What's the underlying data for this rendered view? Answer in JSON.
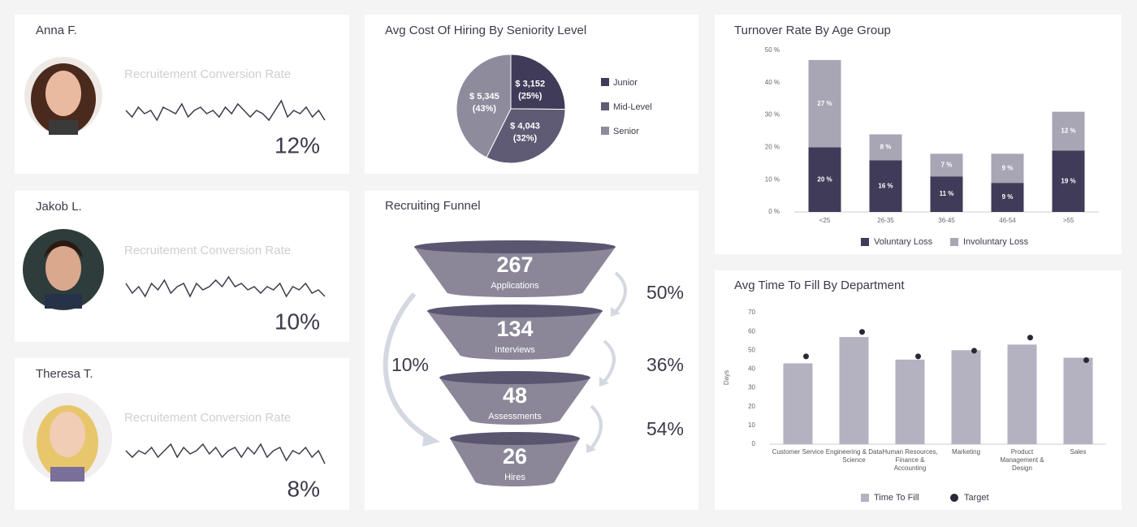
{
  "people": [
    {
      "name": "Anna F.",
      "metric": "Recruitement Conversion Rate",
      "rate": "12%",
      "trend": [
        5,
        3,
        6,
        4,
        5,
        2,
        6,
        5,
        4,
        7,
        3,
        5,
        6,
        4,
        5,
        3,
        6,
        4,
        7,
        5,
        3,
        5,
        4,
        2,
        5,
        8,
        3,
        5,
        4,
        6,
        3,
        5,
        2
      ]
    },
    {
      "name": "Jakob L.",
      "metric": "Recruitement Conversion Rate",
      "rate": "10%",
      "trend": [
        6,
        3,
        5,
        2,
        6,
        4,
        7,
        3,
        5,
        6,
        2,
        6,
        4,
        5,
        7,
        5,
        8,
        5,
        6,
        4,
        5,
        3,
        5,
        4,
        6,
        2,
        5,
        4,
        6,
        3,
        4,
        2
      ]
    },
    {
      "name": "Theresa T.",
      "metric": "Recruitement Conversion Rate",
      "rate": "8%",
      "trend": [
        5,
        3,
        5,
        4,
        6,
        3,
        5,
        7,
        3,
        6,
        4,
        5,
        7,
        4,
        6,
        3,
        5,
        6,
        3,
        6,
        4,
        7,
        3,
        5,
        6,
        2,
        5,
        4,
        6,
        3,
        5,
        1
      ]
    }
  ],
  "chart_data": [
    {
      "type": "pie",
      "title": "Avg Cost Of Hiring By Seniority Level",
      "categories": [
        "Junior",
        "Mid-Level",
        "Senior"
      ],
      "values": [
        3152,
        4043,
        5345
      ],
      "value_labels": [
        "$ 3,152",
        "$ 4,043",
        "$ 5,345"
      ],
      "percent_labels": [
        "(25%)",
        "(32%)",
        "(43%)"
      ],
      "colors": [
        "#3f3b58",
        "#5f5b74",
        "#8e8b9c"
      ],
      "legend": "right"
    },
    {
      "type": "stacked_bar",
      "title": "Turnover Rate By Age Group",
      "categories": [
        "<25",
        "26-35",
        "36-45",
        "46-54",
        ">55"
      ],
      "series": [
        {
          "name": "Voluntary Loss",
          "color": "#3f3b58",
          "values": [
            20,
            16,
            11,
            9,
            19
          ],
          "value_labels": [
            "20 %",
            "16 %",
            "11 %",
            "9 %",
            "19 %"
          ]
        },
        {
          "name": "Involuntary Loss",
          "color": "#a8a5b4",
          "values": [
            27,
            8,
            7,
            9,
            12
          ],
          "value_labels": [
            "27 %",
            "8 %",
            "7 %",
            "9 %",
            "12 %"
          ]
        }
      ],
      "ylim": [
        0,
        50
      ],
      "yticks": [
        {
          "value": 0,
          "label": "0 %"
        },
        {
          "value": 10,
          "label": "10 %"
        },
        {
          "value": 20,
          "label": "20 %"
        },
        {
          "value": 30,
          "label": "30 %"
        },
        {
          "value": 40,
          "label": "40 %"
        },
        {
          "value": 50,
          "label": "50 %"
        }
      ],
      "legend": "bottom"
    },
    {
      "type": "bar_target",
      "title": "Avg Time To Fill By Department",
      "ylabel": "Days",
      "categories": [
        "Customer Service",
        "Engineering & Data Science",
        "Human Resources, Finance & Accounting",
        "Marketing",
        "Product Management & Design",
        "Sales"
      ],
      "series": [
        {
          "name": "Time To Fill",
          "color": "#b4b1c0",
          "values": [
            43,
            57,
            45,
            50,
            53,
            46
          ]
        },
        {
          "name": "Target",
          "color": "#2a2737",
          "values": [
            45,
            58,
            45,
            48,
            55,
            43
          ]
        }
      ],
      "ylim": [
        0,
        70
      ],
      "yticks": [
        0,
        10,
        20,
        30,
        40,
        50,
        60,
        70
      ],
      "legend": "bottom"
    }
  ],
  "funnel": {
    "title": "Recruiting Funnel",
    "stages": [
      {
        "value": 267,
        "label": "Applications"
      },
      {
        "value": 134,
        "label": "Interviews"
      },
      {
        "value": 48,
        "label": "Assessments"
      },
      {
        "value": 26,
        "label": "Hires"
      }
    ],
    "conversions": [
      "50%",
      "36%",
      "54%"
    ],
    "overall": "10%"
  }
}
